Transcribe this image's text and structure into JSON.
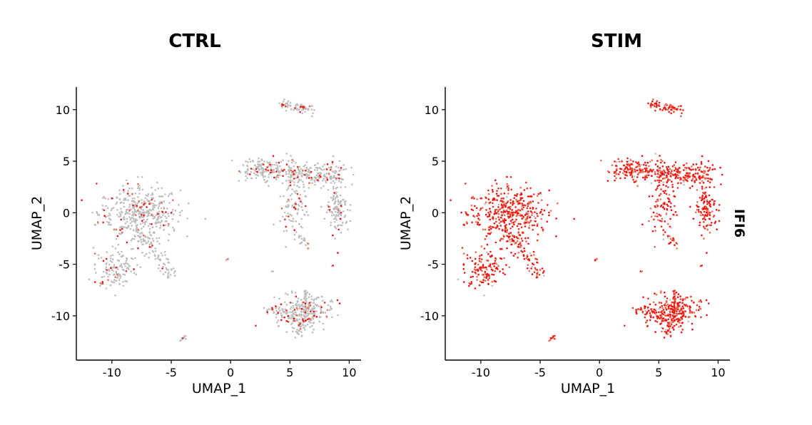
{
  "chart_data": [
    {
      "type": "scatter",
      "title": "CTRL",
      "xlabel": "UMAP_1",
      "ylabel": "UMAP_2",
      "xlim": [
        -13,
        11
      ],
      "ylim": [
        -14.3,
        12.2
      ],
      "xticks": [
        -10,
        -5,
        0,
        5,
        10
      ],
      "yticks": [
        10,
        5,
        0,
        -5,
        -10
      ],
      "xtick_labels": [
        "-10",
        "-5",
        "0",
        "5",
        "10"
      ],
      "ytick_labels": [
        "10",
        "5",
        "0",
        "-5",
        "-10"
      ],
      "expression_fraction": 0.12,
      "colors": {
        "low": "#bdbdbd",
        "high": "#f01010"
      }
    },
    {
      "type": "scatter",
      "title": "STIM",
      "xlabel": "UMAP_1",
      "ylabel": "UMAP_2",
      "xlim": [
        -13,
        11
      ],
      "ylim": [
        -14.3,
        12.2
      ],
      "xticks": [
        -10,
        -5,
        0,
        5,
        10
      ],
      "yticks": [
        10,
        5,
        0,
        -5,
        -10
      ],
      "xtick_labels": [
        "-10",
        "-5",
        "0",
        "5",
        "10"
      ],
      "ytick_labels": [
        "10",
        "5",
        "0",
        "-5",
        "-10"
      ],
      "expression_fraction": 0.95,
      "colors": {
        "low": "#bdbdbd",
        "high": "#f01010"
      },
      "feature_label": "IFI6"
    }
  ],
  "clusters": [
    {
      "name": "left-blob",
      "cx": -7.7,
      "cy": -0.1,
      "sx": 1.7,
      "sy": 1.3,
      "n": 420
    },
    {
      "name": "left-tail",
      "cx": -9.7,
      "cy": -5.4,
      "sx": 0.9,
      "sy": 0.9,
      "n": 130
    },
    {
      "name": "left-arm",
      "from": [
        -7.8,
        -2.0
      ],
      "to": [
        -4.8,
        -6.1
      ],
      "spread": 0.35,
      "n": 80
    },
    {
      "name": "left-stalk",
      "cx": -7.7,
      "cy": 2.6,
      "sx": 0.15,
      "sy": 0.4,
      "n": 8
    },
    {
      "name": "top-island",
      "from": [
        4.2,
        10.5
      ],
      "to": [
        7.0,
        10.0
      ],
      "spread": 0.22,
      "n": 70
    },
    {
      "name": "right-top-band",
      "from": [
        1.5,
        4.2
      ],
      "to": [
        9.2,
        3.6
      ],
      "spread": 0.55,
      "n": 380
    },
    {
      "name": "right-right-lobe",
      "cx": 9.0,
      "cy": 0.5,
      "sx": 0.5,
      "sy": 1.3,
      "n": 120
    },
    {
      "name": "right-left-lobe",
      "cx": 5.3,
      "cy": 0.6,
      "sx": 0.6,
      "sy": 1.3,
      "n": 90
    },
    {
      "name": "right-small",
      "from": [
        5.6,
        -2.4
      ],
      "to": [
        6.5,
        -3.2
      ],
      "spread": 0.15,
      "n": 15
    },
    {
      "name": "bottom-blob",
      "cx": 6.2,
      "cy": -9.6,
      "sx": 1.2,
      "sy": 0.8,
      "n": 230
    },
    {
      "name": "bottom-spike",
      "from": [
        6.4,
        -7.5
      ],
      "to": [
        6.3,
        -10.5
      ],
      "spread": 0.18,
      "n": 40
    },
    {
      "name": "bottom-down",
      "from": [
        6.0,
        -10.5
      ],
      "to": [
        5.8,
        -11.9
      ],
      "spread": 0.25,
      "n": 30
    },
    {
      "name": "bottom-left",
      "from": [
        3.4,
        -9.4
      ],
      "to": [
        5.0,
        -10.0
      ],
      "spread": 0.3,
      "n": 40
    },
    {
      "name": "mid-dot",
      "cx": -0.3,
      "cy": -4.6,
      "sx": 0.08,
      "sy": 0.06,
      "n": 4
    },
    {
      "name": "low-left-dot",
      "from": [
        -4.2,
        -12.4
      ],
      "to": [
        -3.7,
        -11.9
      ],
      "spread": 0.08,
      "n": 8
    },
    {
      "name": "stray-a",
      "cx": 3.5,
      "cy": -5.7,
      "sx": 0.05,
      "sy": 0.05,
      "n": 2
    },
    {
      "name": "stray-b",
      "cx": 8.6,
      "cy": -5.2,
      "sx": 0.05,
      "sy": 0.05,
      "n": 2
    }
  ]
}
